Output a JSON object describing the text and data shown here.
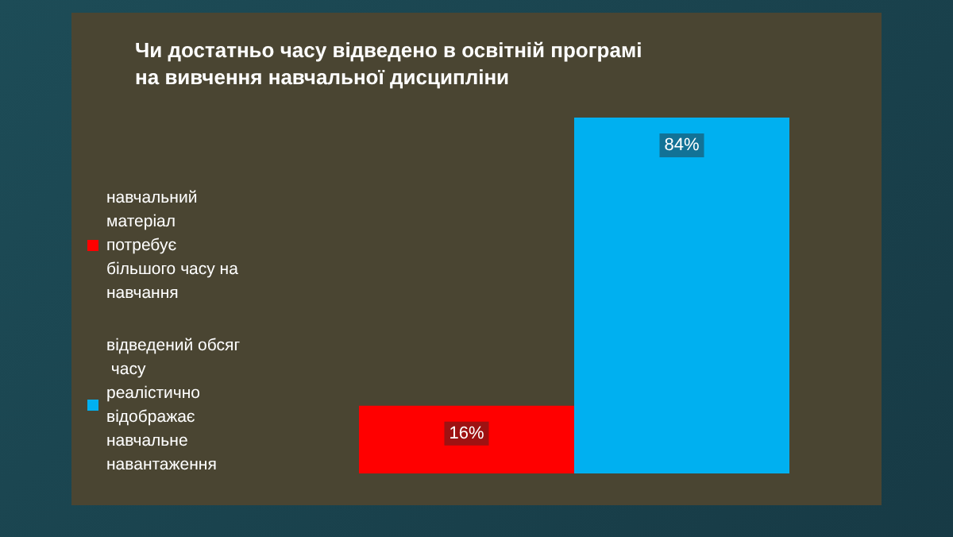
{
  "chart_data": {
    "type": "bar",
    "title": "Чи достатньо часу відведено в освітній програмі\nна вивчення навчальної дисципліни",
    "categories": [
      null
    ],
    "legend": "left",
    "series": [
      {
        "name": "навчальний матеріал потребує більшого часу на навчання",
        "color": "#ff0000",
        "values": [
          16
        ],
        "value_labels": [
          "16%"
        ]
      },
      {
        "name": "відведений обсяг часу реалістично відображає навчальне навантаження",
        "color": "#00b0f0",
        "values": [
          84
        ],
        "value_labels": [
          "84%"
        ]
      }
    ]
  }
}
